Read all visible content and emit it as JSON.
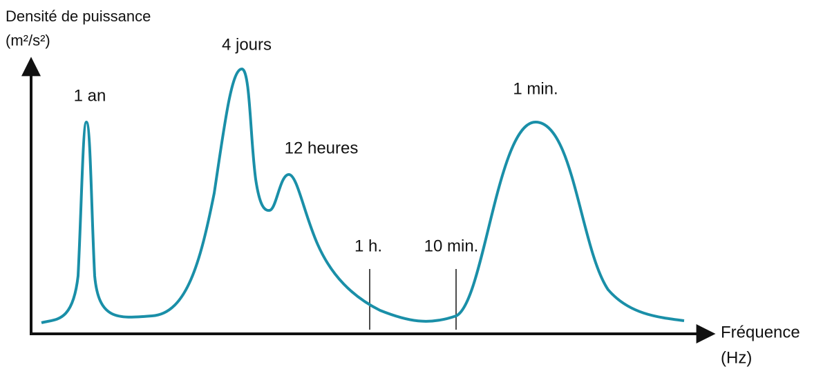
{
  "y_axis_label": [
    "Densité de puissance",
    "(m²/s²)"
  ],
  "x_axis_label": [
    "Fréquence",
    "(Hz)"
  ],
  "peaks": [
    "1 an",
    "4 jours",
    "12 heures",
    "1 min."
  ],
  "markers": [
    "1 h.",
    "10 min."
  ]
}
